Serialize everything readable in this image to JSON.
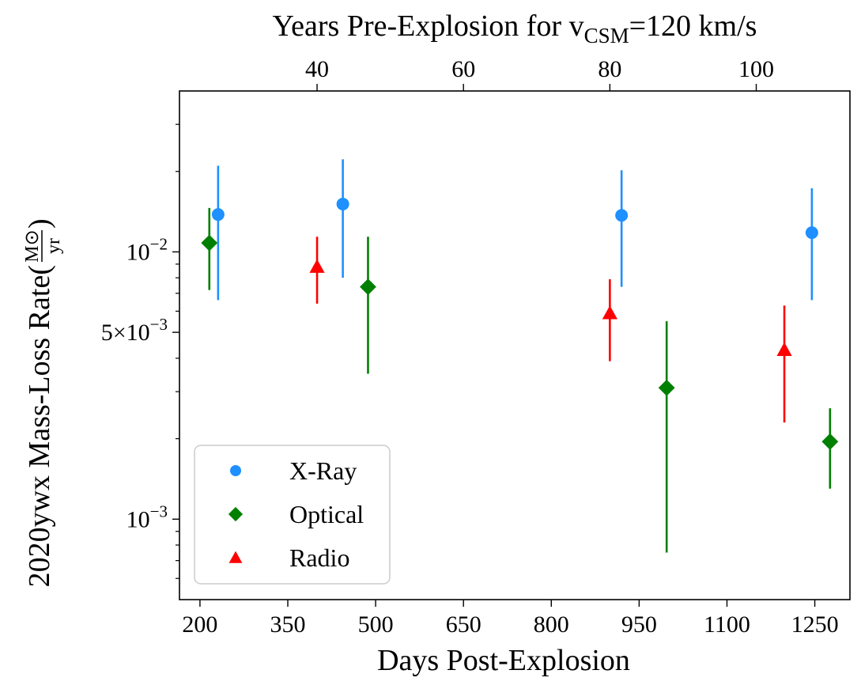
{
  "chart_data": {
    "type": "scatter",
    "y_scale": "log",
    "xlabel": "Days Post-Explosion",
    "ylabel_prefix": "2020ywx Mass-Loss Rate(",
    "ylabel_frac_num": "M⊙",
    "ylabel_frac_den": "yr",
    "ylabel_suffix": ")",
    "top_xlabel_prefix": "Years Pre-Explosion for v",
    "top_xlabel_sub": "CSM",
    "top_xlabel_suffix": "=120 km/s",
    "xlim": [
      165,
      1310
    ],
    "ylim": [
      0.0005,
      0.04
    ],
    "x_ticks": [
      200,
      350,
      500,
      650,
      800,
      950,
      1100,
      1250
    ],
    "top_ticks": [
      {
        "label": "40",
        "days": 400
      },
      {
        "label": "60",
        "days": 650
      },
      {
        "label": "80",
        "days": 900
      },
      {
        "label": "100",
        "days": 1150
      }
    ],
    "y_major_ticks": [
      {
        "value": 0.001,
        "mantissa": "10",
        "exponent": "−3"
      },
      {
        "value": 0.005,
        "mantissa": "5×10",
        "exponent": "−3"
      },
      {
        "value": 0.01,
        "mantissa": "10",
        "exponent": "−2"
      }
    ],
    "y_minor_ticks": [
      0.0006,
      0.0007,
      0.0008,
      0.0009,
      0.002,
      0.003,
      0.004,
      0.006,
      0.007,
      0.008,
      0.009,
      0.02,
      0.03
    ],
    "legend_position": "lower-left",
    "series": [
      {
        "name": "X-Ray",
        "marker": "circle",
        "color": "#1e90ff",
        "points": [
          {
            "x": 231,
            "y": 0.0138,
            "ylow": 0.0066,
            "yhigh": 0.021
          },
          {
            "x": 444,
            "y": 0.0151,
            "ylow": 0.008,
            "yhigh": 0.0222
          },
          {
            "x": 920,
            "y": 0.0137,
            "ylow": 0.0074,
            "yhigh": 0.0202
          },
          {
            "x": 1245,
            "y": 0.0118,
            "ylow": 0.0066,
            "yhigh": 0.0173
          }
        ]
      },
      {
        "name": "Optical",
        "marker": "diamond",
        "color": "#008000",
        "points": [
          {
            "x": 216,
            "y": 0.0108,
            "ylow": 0.0072,
            "yhigh": 0.0146
          },
          {
            "x": 487,
            "y": 0.0074,
            "ylow": 0.0035,
            "yhigh": 0.0114
          },
          {
            "x": 997,
            "y": 0.0031,
            "ylow": 0.00075,
            "yhigh": 0.0055
          },
          {
            "x": 1276,
            "y": 0.00195,
            "ylow": 0.0013,
            "yhigh": 0.0026
          }
        ]
      },
      {
        "name": "Radio",
        "marker": "triangle",
        "color": "#ff0000",
        "points": [
          {
            "x": 400,
            "y": 0.0088,
            "ylow": 0.0064,
            "yhigh": 0.0114
          },
          {
            "x": 900,
            "y": 0.0059,
            "ylow": 0.0039,
            "yhigh": 0.0079
          },
          {
            "x": 1198,
            "y": 0.0043,
            "ylow": 0.0023,
            "yhigh": 0.0063
          }
        ]
      }
    ]
  }
}
